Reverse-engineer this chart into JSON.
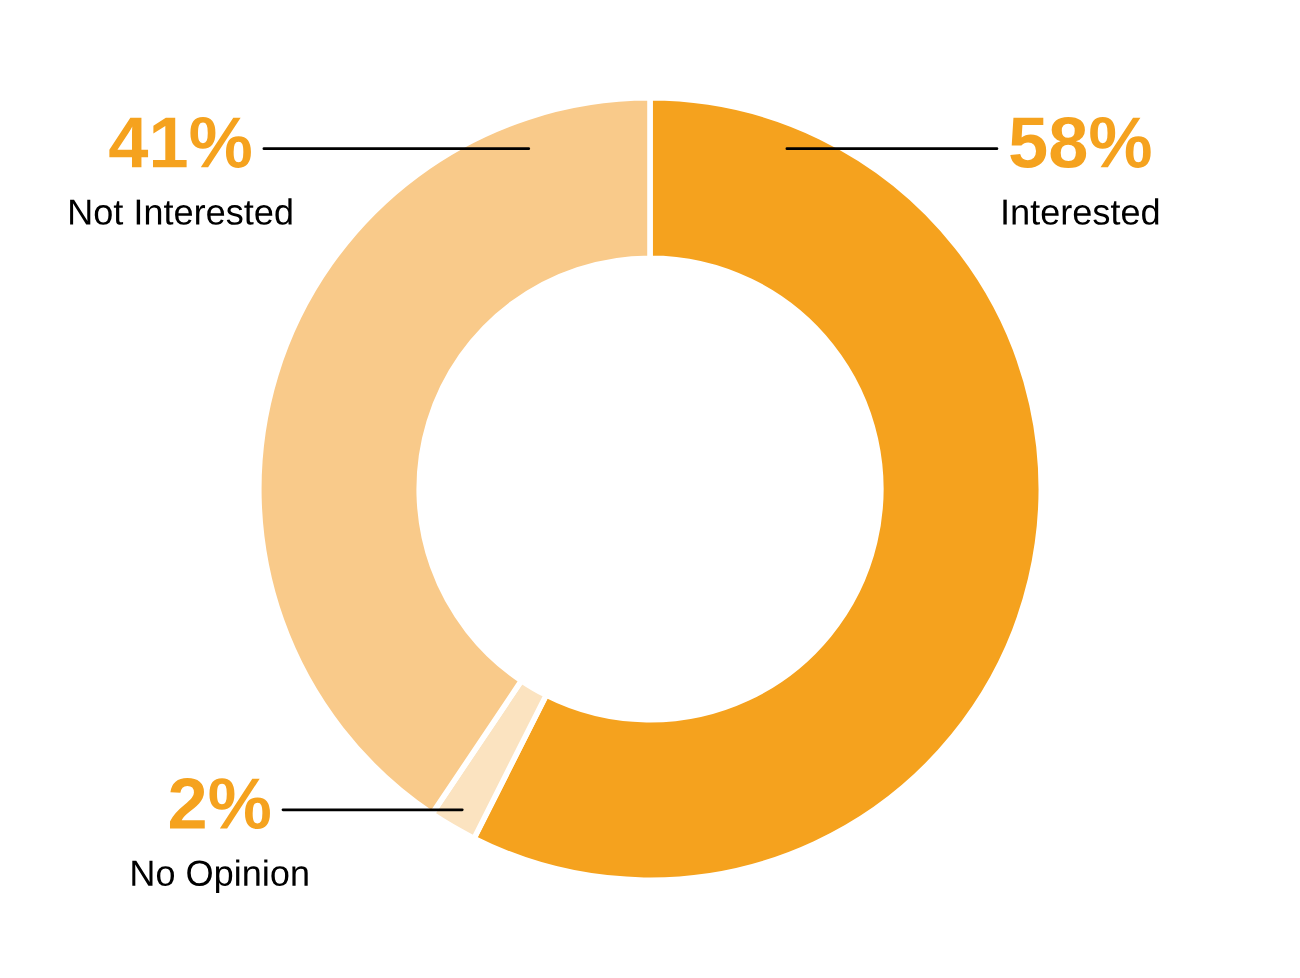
{
  "chart_data": {
    "type": "donut",
    "categories": [
      "Interested",
      "No Opinion",
      "Not Interested"
    ],
    "values": [
      58,
      2,
      41
    ],
    "value_labels": [
      "58%",
      "2%",
      "41%"
    ],
    "colors": [
      "#f5a21e",
      "#fbe3c0",
      "#f9ca8a"
    ],
    "legend": false
  }
}
